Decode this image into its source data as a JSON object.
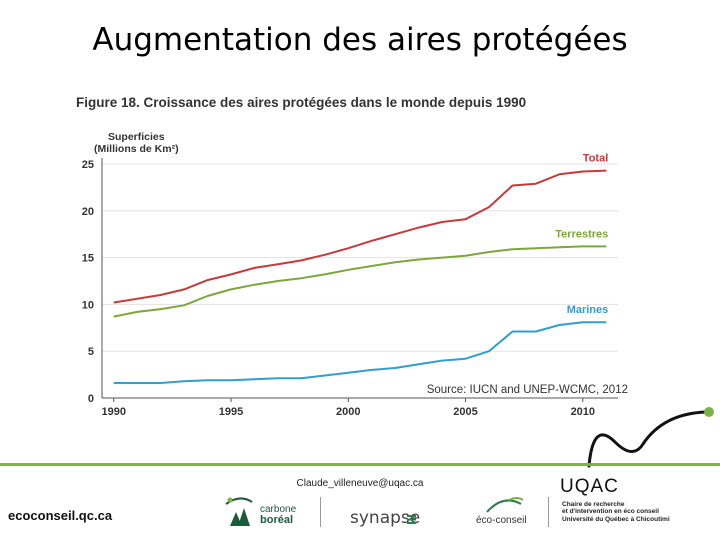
{
  "slide": {
    "title": "Augmentation des aires protégées",
    "email": "Claude_villeneuve@uqac.ca",
    "footer_site": "ecoconseil.qc.ca"
  },
  "logos": {
    "carbone_line1": "carbone",
    "carbone_line2": "boréal",
    "synapse": "synapse",
    "eco_conseil": "éco-conseil",
    "uqac": "UQAC",
    "uqac_line1": "Chaire de recherche",
    "uqac_line2": "et d'intervention en éco conseil",
    "uqac_line3": "Université du Québec à Chicoutimi"
  },
  "colors": {
    "total": "#c83a3a",
    "terrestres": "#7aa83a",
    "marines": "#2f9fd0",
    "accent_green": "#7cb342"
  },
  "chart_data": {
    "type": "line",
    "title": "Figure 18. Croissance des aires protégées dans le monde depuis 1990",
    "ylabel_line1": "Superficies",
    "ylabel_line2": "(Millions de Km²)",
    "xlabel": "",
    "source": "Source: IUCN and UNEP-WCMC, 2012",
    "xlim": [
      1989.5,
      2011.5
    ],
    "ylim": [
      0,
      25
    ],
    "xticks": [
      1990,
      1995,
      2000,
      2005,
      2010
    ],
    "yticks": [
      0,
      5,
      10,
      15,
      20,
      25
    ],
    "x": [
      1990,
      1991,
      1992,
      1993,
      1994,
      1995,
      1996,
      1997,
      1998,
      1999,
      2000,
      2001,
      2002,
      2003,
      2004,
      2005,
      2006,
      2007,
      2008,
      2009,
      2010,
      2011
    ],
    "series": [
      {
        "name": "Total",
        "values": [
          10.2,
          10.6,
          11.0,
          11.6,
          12.6,
          13.2,
          13.9,
          14.3,
          14.7,
          15.3,
          16.0,
          16.8,
          17.5,
          18.2,
          18.8,
          19.1,
          20.4,
          22.7,
          22.9,
          23.9,
          24.2,
          24.3
        ]
      },
      {
        "name": "Terrestres",
        "values": [
          8.7,
          9.2,
          9.5,
          9.9,
          10.9,
          11.6,
          12.1,
          12.5,
          12.8,
          13.2,
          13.7,
          14.1,
          14.5,
          14.8,
          15.0,
          15.2,
          15.6,
          15.9,
          16.0,
          16.1,
          16.2,
          16.2
        ]
      },
      {
        "name": "Marines",
        "values": [
          1.6,
          1.6,
          1.6,
          1.8,
          1.9,
          1.9,
          2.0,
          2.1,
          2.1,
          2.4,
          2.7,
          3.0,
          3.2,
          3.6,
          4.0,
          4.2,
          5.0,
          7.1,
          7.1,
          7.8,
          8.1,
          8.1
        ]
      }
    ]
  }
}
